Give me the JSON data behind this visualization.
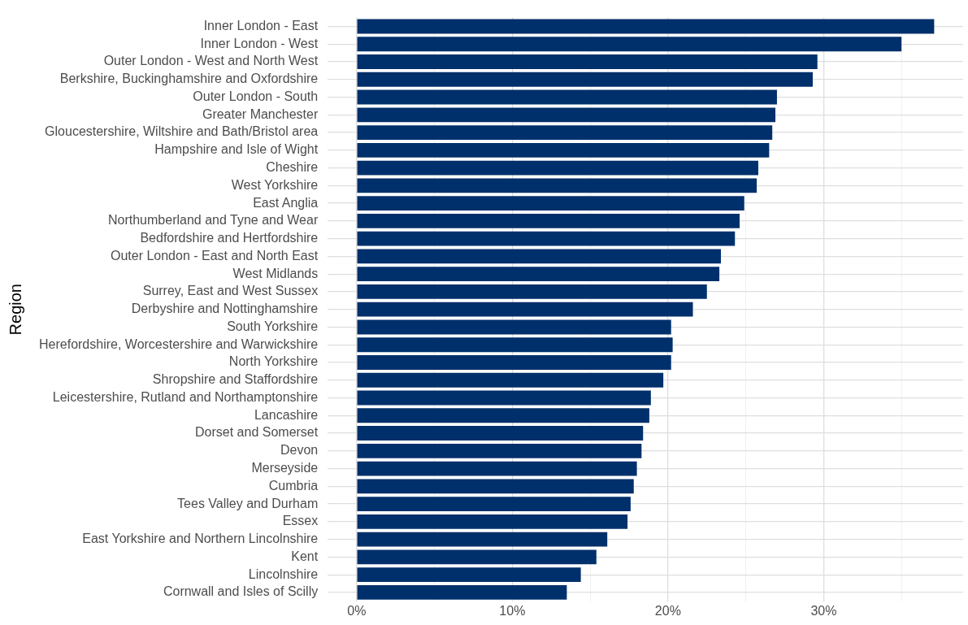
{
  "chart_data": {
    "type": "bar",
    "orientation": "horizontal",
    "ylabel": "Region",
    "categories": [
      "Inner London - East",
      "Inner London - West",
      "Outer London - West and North West",
      "Berkshire, Buckinghamshire and Oxfordshire",
      "Outer London - South",
      "Greater Manchester",
      "Gloucestershire, Wiltshire and Bath/Bristol area",
      "Hampshire and Isle of Wight",
      "Cheshire",
      "West Yorkshire",
      "East Anglia",
      "Northumberland and Tyne and Wear",
      "Bedfordshire and Hertfordshire",
      "Outer London - East and North East",
      "West Midlands",
      "Surrey, East and West Sussex",
      "Derbyshire and Nottinghamshire",
      "South Yorkshire",
      "Herefordshire, Worcestershire and Warwickshire",
      "North Yorkshire",
      "Shropshire and Staffordshire",
      "Leicestershire, Rutland and Northamptonshire",
      "Lancashire",
      "Dorset and Somerset",
      "Devon",
      "Merseyside",
      "Cumbria",
      "Tees Valley and Durham",
      "Essex",
      "East Yorkshire and Northern Lincolnshire",
      "Kent",
      "Lincolnshire",
      "Cornwall and Isles of Scilly"
    ],
    "values": [
      37.1,
      35.0,
      29.6,
      29.3,
      27.0,
      26.9,
      26.7,
      26.5,
      25.8,
      25.7,
      24.9,
      24.6,
      24.3,
      23.4,
      23.3,
      22.5,
      21.6,
      20.2,
      20.3,
      20.2,
      19.7,
      18.9,
      18.8,
      18.4,
      18.3,
      18.0,
      17.8,
      17.6,
      17.4,
      16.1,
      15.4,
      14.4,
      13.5
    ],
    "color": "#00306b",
    "xlim": [
      -1.86,
      38.96
    ],
    "xticks": [
      {
        "value": 0,
        "label": "0%"
      },
      {
        "value": 5,
        "label": null
      },
      {
        "value": 10,
        "label": "10%"
      },
      {
        "value": 15,
        "label": null
      },
      {
        "value": 20,
        "label": "20%"
      },
      {
        "value": 25,
        "label": null
      },
      {
        "value": 30,
        "label": "30%"
      },
      {
        "value": 35,
        "label": null
      }
    ],
    "grid": true,
    "legend": false
  }
}
